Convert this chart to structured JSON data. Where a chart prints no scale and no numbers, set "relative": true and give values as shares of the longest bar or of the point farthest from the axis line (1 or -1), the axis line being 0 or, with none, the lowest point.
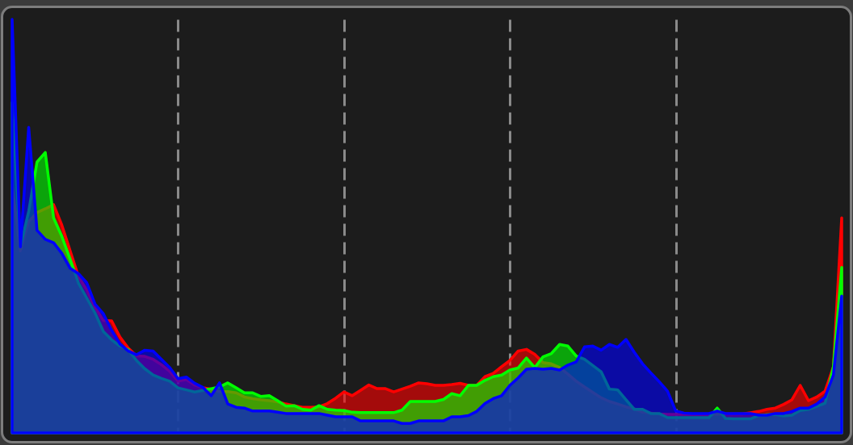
{
  "chart_data": {
    "type": "area",
    "relative": true,
    "grid": "x",
    "categories": [
      null,
      null,
      null,
      null,
      null,
      null,
      null,
      null,
      null,
      null,
      null,
      null,
      null,
      null,
      null,
      null,
      null,
      null,
      null,
      null,
      null,
      null,
      null,
      null,
      null,
      null,
      null,
      null,
      null,
      null,
      null,
      null,
      null,
      null,
      null,
      null,
      null,
      null,
      null,
      null,
      null,
      null,
      null,
      null,
      null,
      null,
      null,
      null,
      null,
      null,
      null,
      null,
      null,
      null,
      null,
      null,
      null,
      null,
      null,
      null,
      null,
      null,
      null,
      null,
      null,
      null,
      null,
      null,
      null,
      null,
      null,
      null,
      null,
      null,
      null,
      null,
      null,
      null,
      null,
      null,
      null,
      null,
      null,
      null,
      null,
      null,
      null,
      null,
      null,
      null,
      null,
      null,
      null,
      null,
      null,
      null,
      null,
      null,
      null,
      null,
      null
    ],
    "series": [
      {
        "color": "#ff0000",
        "values": [
          0.6,
          0.44,
          0.511,
          0.533,
          0.542,
          0.552,
          0.502,
          0.44,
          0.378,
          0.346,
          0.304,
          0.272,
          0.271,
          0.232,
          0.205,
          0.186,
          0.185,
          0.178,
          0.165,
          0.149,
          0.125,
          0.129,
          0.116,
          0.109,
          0.106,
          0.1,
          0.1,
          0.097,
          0.087,
          0.083,
          0.08,
          0.078,
          0.075,
          0.07,
          0.066,
          0.062,
          0.062,
          0.063,
          0.071,
          0.084,
          0.099,
          0.09,
          0.103,
          0.116,
          0.107,
          0.107,
          0.099,
          0.106,
          0.113,
          0.121,
          0.119,
          0.115,
          0.115,
          0.117,
          0.12,
          0.115,
          0.115,
          0.136,
          0.144,
          0.16,
          0.175,
          0.198,
          0.202,
          0.19,
          0.17,
          0.167,
          0.158,
          0.142,
          0.125,
          0.111,
          0.098,
          0.085,
          0.076,
          0.07,
          0.063,
          0.058,
          0.05,
          0.048,
          0.046,
          0.045,
          0.045,
          0.045,
          0.045,
          0.045,
          0.045,
          0.045,
          0.046,
          0.046,
          0.046,
          0.049,
          0.052,
          0.057,
          0.06,
          0.069,
          0.08,
          0.115,
          0.078,
          0.087,
          0.101,
          0.16,
          0.52
        ]
      },
      {
        "color": "#00ff00",
        "values": [
          0.799,
          0.45,
          0.536,
          0.655,
          0.678,
          0.52,
          0.475,
          0.42,
          0.362,
          0.326,
          0.29,
          0.245,
          0.225,
          0.21,
          0.201,
          0.175,
          0.155,
          0.14,
          0.132,
          0.125,
          0.109,
          0.104,
          0.099,
          0.103,
          0.107,
          0.111,
          0.121,
          0.109,
          0.097,
          0.097,
          0.088,
          0.09,
          0.078,
          0.065,
          0.066,
          0.057,
          0.055,
          0.066,
          0.057,
          0.055,
          0.054,
          0.05,
          0.049,
          0.049,
          0.049,
          0.049,
          0.049,
          0.055,
          0.076,
          0.076,
          0.076,
          0.076,
          0.081,
          0.095,
          0.09,
          0.115,
          0.115,
          0.127,
          0.136,
          0.14,
          0.152,
          0.157,
          0.181,
          0.158,
          0.184,
          0.192,
          0.214,
          0.21,
          0.186,
          0.178,
          0.163,
          0.148,
          0.106,
          0.104,
          0.08,
          0.057,
          0.057,
          0.047,
          0.047,
          0.037,
          0.037,
          0.037,
          0.037,
          0.037,
          0.037,
          0.06,
          0.035,
          0.034,
          0.034,
          0.034,
          0.042,
          0.044,
          0.045,
          0.041,
          0.043,
          0.054,
          0.057,
          0.064,
          0.072,
          0.16,
          0.4
        ]
      },
      {
        "color": "#0000ff",
        "values": [
          1.0,
          0.45,
          0.739,
          0.49,
          0.468,
          0.46,
          0.434,
          0.398,
          0.385,
          0.363,
          0.311,
          0.288,
          0.248,
          0.215,
          0.198,
          0.189,
          0.2,
          0.198,
          0.178,
          0.158,
          0.131,
          0.135,
          0.12,
          0.11,
          0.09,
          0.121,
          0.07,
          0.062,
          0.06,
          0.053,
          0.053,
          0.053,
          0.05,
          0.047,
          0.047,
          0.047,
          0.047,
          0.047,
          0.043,
          0.039,
          0.039,
          0.039,
          0.029,
          0.029,
          0.029,
          0.029,
          0.029,
          0.023,
          0.023,
          0.029,
          0.029,
          0.029,
          0.029,
          0.039,
          0.039,
          0.042,
          0.052,
          0.071,
          0.083,
          0.09,
          0.115,
          0.133,
          0.154,
          0.156,
          0.154,
          0.156,
          0.152,
          0.164,
          0.172,
          0.208,
          0.21,
          0.2,
          0.214,
          0.207,
          0.226,
          0.195,
          0.167,
          0.145,
          0.124,
          0.101,
          0.053,
          0.048,
          0.047,
          0.047,
          0.047,
          0.053,
          0.047,
          0.047,
          0.047,
          0.047,
          0.043,
          0.043,
          0.047,
          0.047,
          0.052,
          0.06,
          0.06,
          0.07,
          0.087,
          0.14,
          0.331
        ]
      }
    ]
  }
}
